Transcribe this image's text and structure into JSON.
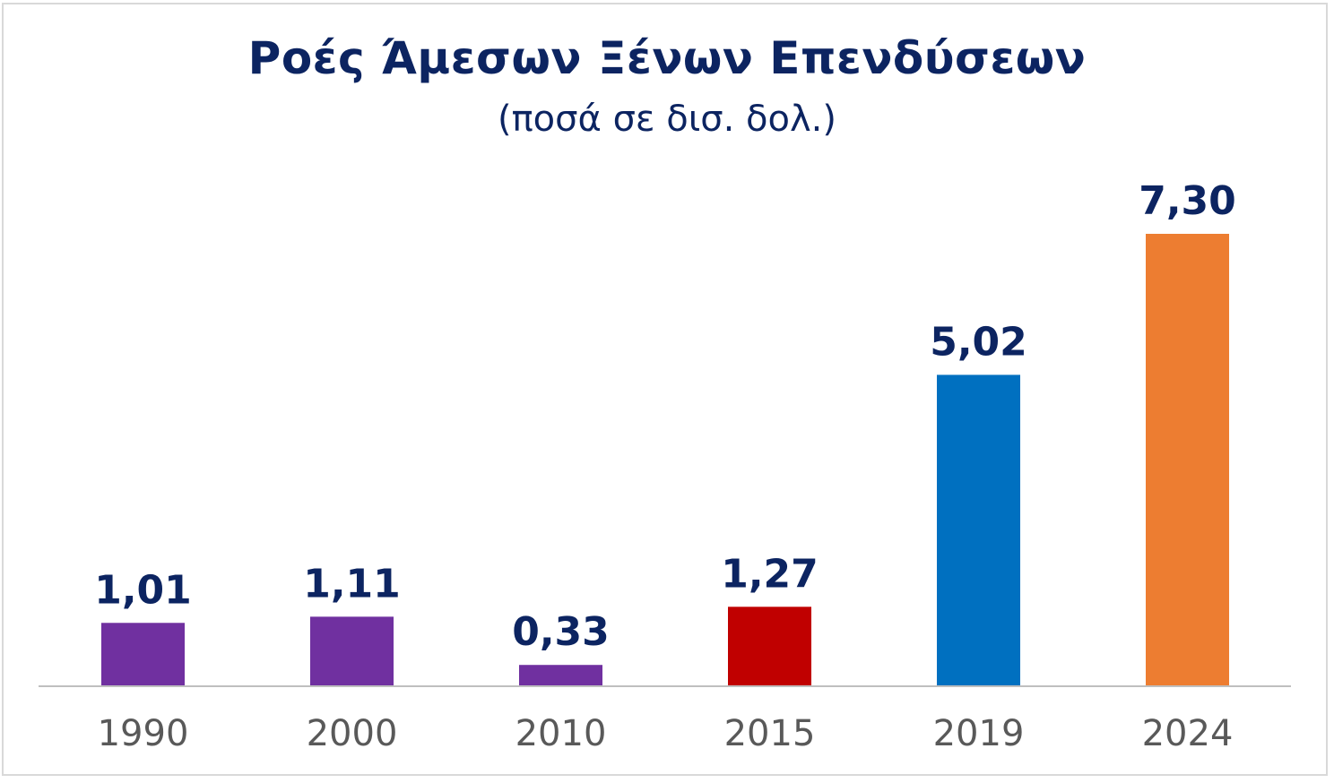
{
  "chart_data": {
    "type": "bar",
    "title": "Ροές Άμεσων Ξένων Επενδύσεων",
    "subtitle": "(ποσά σε δισ. δολ.)",
    "categories": [
      "1990",
      "2000",
      "2010",
      "2015",
      "2019",
      "2024"
    ],
    "values": [
      1.01,
      1.11,
      0.33,
      1.27,
      5.02,
      7.3
    ],
    "value_labels": [
      "1,01",
      "1,11",
      "0,33",
      "1,27",
      "5,02",
      "7,30"
    ],
    "bar_colors": [
      "#7030a0",
      "#7030a0",
      "#7030a0",
      "#c00000",
      "#0070c0",
      "#ed7d31"
    ],
    "xlabel": "",
    "ylabel": "",
    "ylim": [
      0,
      7.3
    ],
    "grid": false,
    "legend": "none"
  }
}
